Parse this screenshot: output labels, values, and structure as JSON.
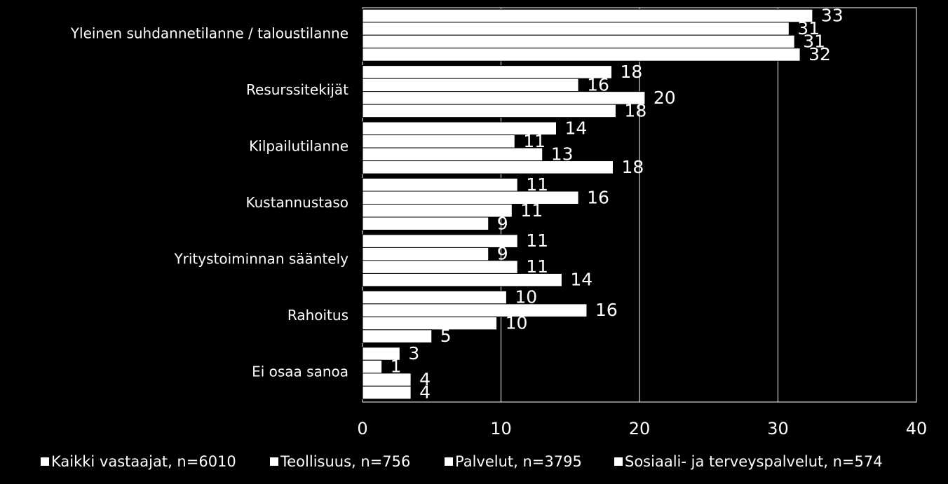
{
  "chart_data": {
    "type": "bar",
    "orientation": "horizontal",
    "title": "",
    "xlabel": "",
    "ylabel": "",
    "xlim": [
      0,
      40
    ],
    "x_ticks": [
      "0",
      "10",
      "20",
      "30",
      "40"
    ],
    "grid": true,
    "legend_position": "bottom",
    "categories": [
      "Yleinen suhdannetilanne / taloustilanne",
      "Resurssitekijät",
      "Kilpailutilanne",
      "Kustannustaso",
      "Yritystoiminnan sääntely",
      "Rahoitus",
      "Ei osaa sanoa"
    ],
    "series": [
      {
        "name": "Kaikki vastaajat, n=6010",
        "values": [
          33,
          18,
          14,
          11,
          11,
          10,
          3
        ],
        "display_values": [
          32.5,
          18,
          14,
          11.2,
          11.2,
          10.4,
          2.7
        ]
      },
      {
        "name": "Teollisuus, n=756",
        "values": [
          31,
          16,
          11,
          16,
          9,
          16,
          1
        ],
        "display_values": [
          30.8,
          15.6,
          11,
          15.6,
          9.1,
          16.2,
          1.4
        ]
      },
      {
        "name": "Palvelut, n=3795",
        "values": [
          31,
          20,
          13,
          11,
          11,
          10,
          4
        ],
        "display_values": [
          31.2,
          20.4,
          13,
          10.8,
          11.2,
          9.7,
          3.5
        ]
      },
      {
        "name": "Sosiaali- ja terveyspalvelut, n=574",
        "values": [
          32,
          18,
          18,
          9,
          14,
          5,
          4
        ],
        "display_values": [
          31.6,
          18.3,
          18.1,
          9.1,
          14.4,
          5,
          3.5
        ]
      }
    ],
    "colors": {
      "background": "#000000",
      "bar_fill": "#ffffff",
      "bar_stroke": "#000000",
      "plot_background": "#000000",
      "grid": "#ffffff",
      "text": "#ffffff"
    }
  }
}
